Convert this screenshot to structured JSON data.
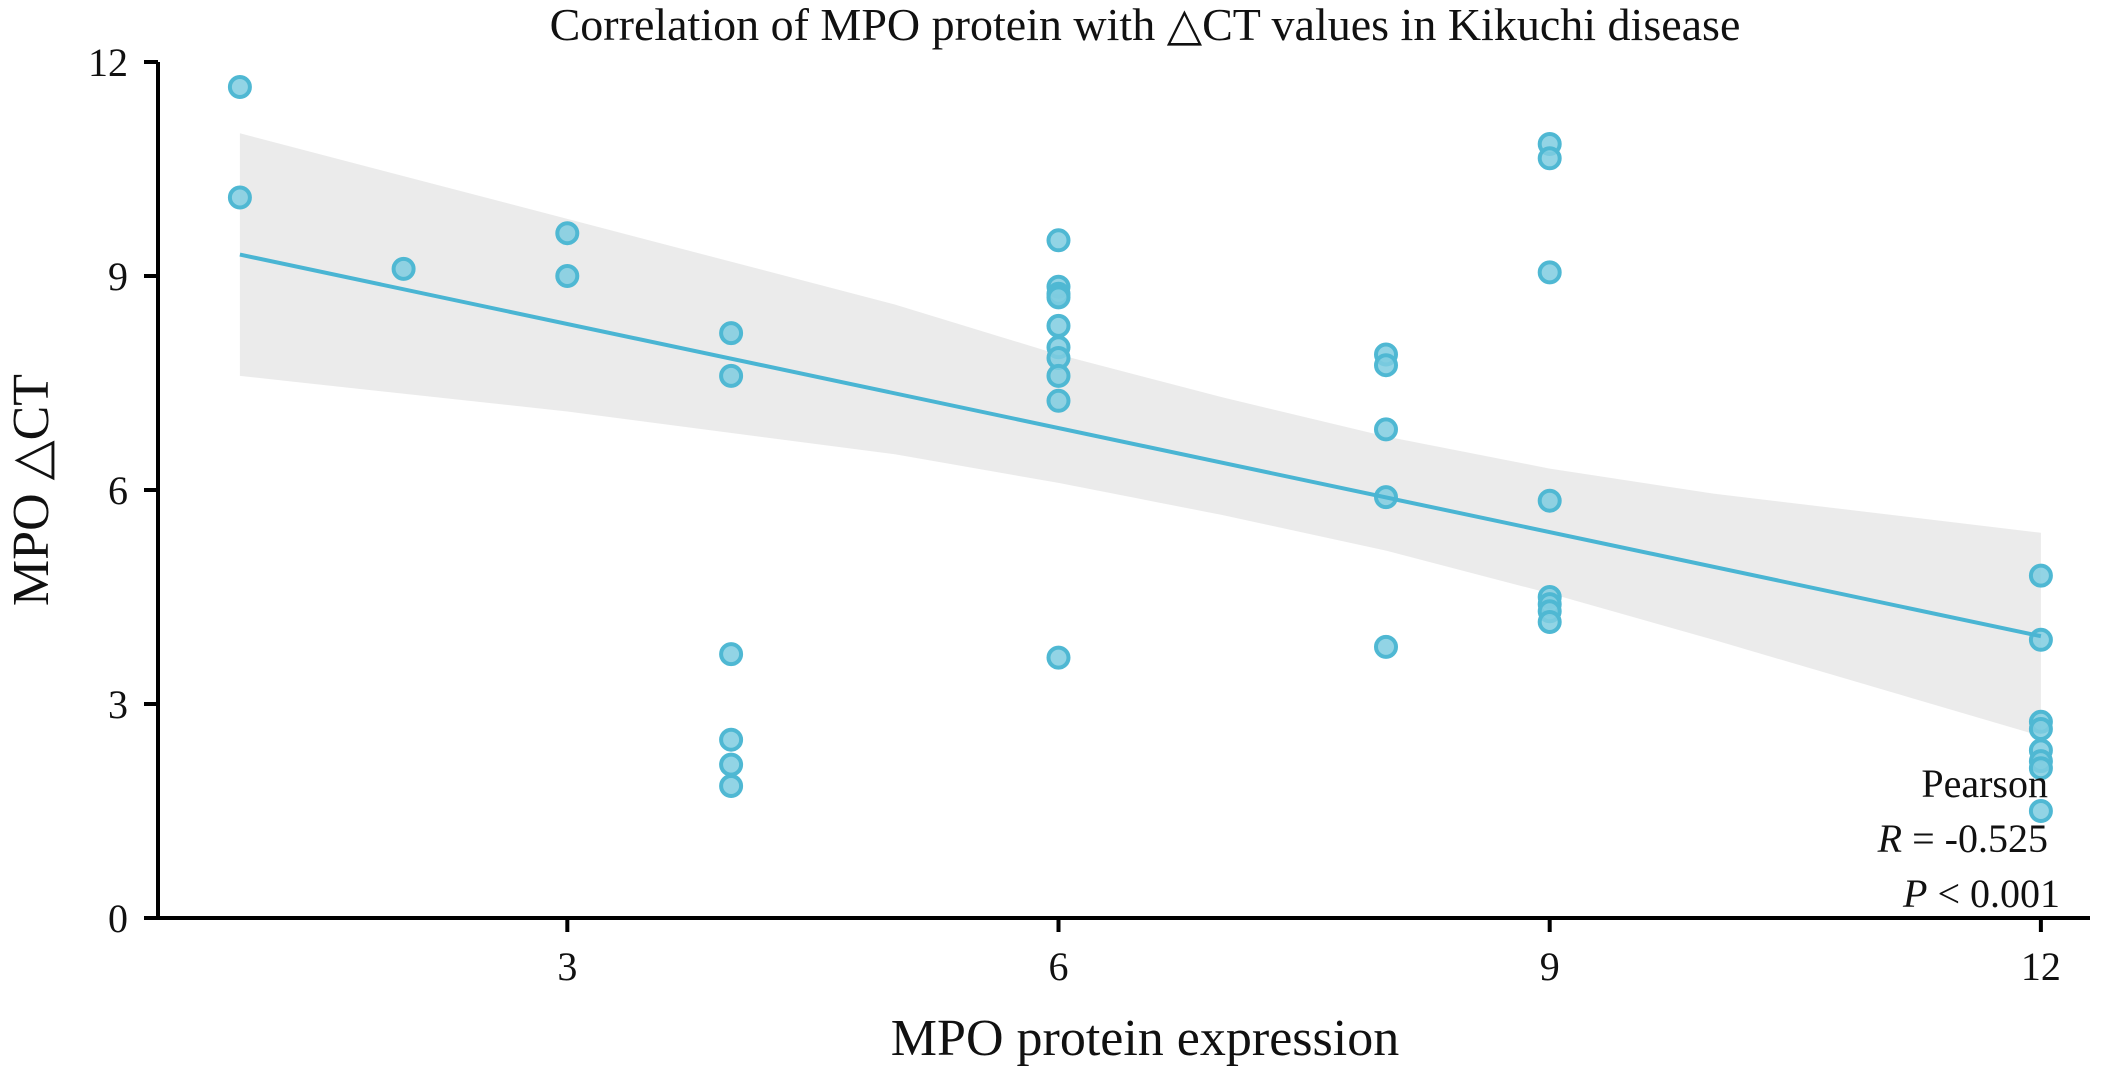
{
  "chart_data": {
    "type": "scatter",
    "title": "Correlation of MPO protein with △CT values in Kikuchi disease",
    "xlabel": "MPO protein expression",
    "ylabel": "MPO △CT",
    "xlim": [
      0.5,
      12.3
    ],
    "ylim": [
      0,
      12
    ],
    "xticks": [
      3,
      6,
      9,
      12
    ],
    "yticks": [
      0,
      3,
      6,
      9,
      12
    ],
    "grid": false,
    "point_color": "#7fcde0",
    "line_color": "#4ab5d3",
    "band_color": "#e6e6e6",
    "points": [
      {
        "x": 1,
        "y": 11.65
      },
      {
        "x": 1,
        "y": 10.1
      },
      {
        "x": 2,
        "y": 9.1
      },
      {
        "x": 3,
        "y": 9.6
      },
      {
        "x": 3,
        "y": 9.0
      },
      {
        "x": 4,
        "y": 8.2
      },
      {
        "x": 4,
        "y": 7.6
      },
      {
        "x": 4,
        "y": 3.7
      },
      {
        "x": 4,
        "y": 2.5
      },
      {
        "x": 4,
        "y": 2.15
      },
      {
        "x": 4,
        "y": 1.85
      },
      {
        "x": 6,
        "y": 9.5
      },
      {
        "x": 6,
        "y": 8.85
      },
      {
        "x": 6,
        "y": 8.75
      },
      {
        "x": 6,
        "y": 8.7
      },
      {
        "x": 6,
        "y": 8.3
      },
      {
        "x": 6,
        "y": 8.0
      },
      {
        "x": 6,
        "y": 7.85
      },
      {
        "x": 6,
        "y": 7.6
      },
      {
        "x": 6,
        "y": 7.25
      },
      {
        "x": 6,
        "y": 3.65
      },
      {
        "x": 8,
        "y": 7.9
      },
      {
        "x": 8,
        "y": 7.75
      },
      {
        "x": 8,
        "y": 6.85
      },
      {
        "x": 8,
        "y": 5.9
      },
      {
        "x": 8,
        "y": 3.8
      },
      {
        "x": 9,
        "y": 10.85
      },
      {
        "x": 9,
        "y": 10.65
      },
      {
        "x": 9,
        "y": 9.05
      },
      {
        "x": 9,
        "y": 5.85
      },
      {
        "x": 9,
        "y": 4.5
      },
      {
        "x": 9,
        "y": 4.4
      },
      {
        "x": 9,
        "y": 4.3
      },
      {
        "x": 9,
        "y": 4.15
      },
      {
        "x": 12,
        "y": 4.8
      },
      {
        "x": 12,
        "y": 3.9
      },
      {
        "x": 12,
        "y": 2.75
      },
      {
        "x": 12,
        "y": 2.65
      },
      {
        "x": 12,
        "y": 2.35
      },
      {
        "x": 12,
        "y": 2.2
      },
      {
        "x": 12,
        "y": 2.1
      },
      {
        "x": 12,
        "y": 1.5
      }
    ],
    "regression_line": [
      {
        "x": 1,
        "y": 9.3
      },
      {
        "x": 12,
        "y": 3.95
      }
    ],
    "confidence_band": {
      "upper": [
        {
          "x": 1,
          "y": 11.0
        },
        {
          "x": 3,
          "y": 9.8
        },
        {
          "x": 5,
          "y": 8.6
        },
        {
          "x": 6,
          "y": 7.9
        },
        {
          "x": 7,
          "y": 7.3
        },
        {
          "x": 8,
          "y": 6.75
        },
        {
          "x": 9,
          "y": 6.3
        },
        {
          "x": 10,
          "y": 5.95
        },
        {
          "x": 12,
          "y": 5.4
        }
      ],
      "lower": [
        {
          "x": 1,
          "y": 7.6
        },
        {
          "x": 3,
          "y": 7.1
        },
        {
          "x": 5,
          "y": 6.5
        },
        {
          "x": 6,
          "y": 6.1
        },
        {
          "x": 7,
          "y": 5.65
        },
        {
          "x": 8,
          "y": 5.15
        },
        {
          "x": 9,
          "y": 4.55
        },
        {
          "x": 10,
          "y": 3.9
        },
        {
          "x": 12,
          "y": 2.55
        }
      ]
    },
    "annotation": {
      "method": "Pearson",
      "r_symbol": "R",
      "r_text": " = -0.525",
      "p_symbol": "P",
      "p_text": " < 0.001"
    }
  }
}
